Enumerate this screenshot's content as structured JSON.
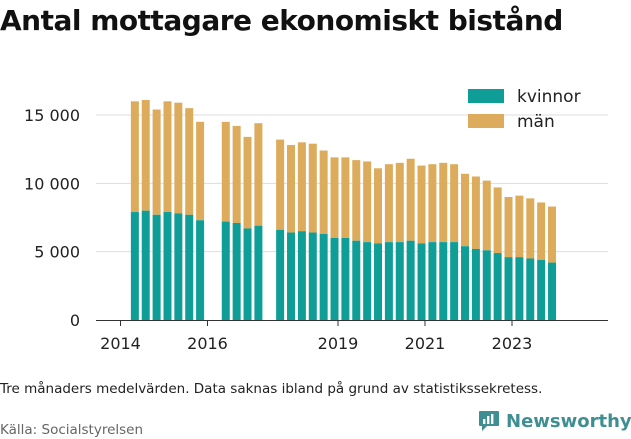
{
  "title": "Antal mottagare ekonomiskt bistånd",
  "caption": "Tre månaders medelvärden. Data saknas ibland på grund av statistikssekretess.",
  "source": "Källa: Socialstyrelsen",
  "brand": "Newsworthy",
  "colors": {
    "kvinnor": "#0e9e97",
    "man": "#dcab5b",
    "grid": "#dddddd",
    "axis": "#333333",
    "brand": "#3f8f92"
  },
  "chart_data": {
    "type": "bar",
    "stacked": true,
    "y_ticks": [
      {
        "value": 0,
        "label": "0"
      },
      {
        "value": 5000,
        "label": "5 000"
      },
      {
        "value": 10000,
        "label": "10 000"
      },
      {
        "value": 15000,
        "label": "15 000"
      }
    ],
    "x_ticks": [
      {
        "value": 2014.0,
        "label": "2014"
      },
      {
        "value": 2016.0,
        "label": "2016"
      },
      {
        "value": 2019.0,
        "label": "2019"
      },
      {
        "value": 2021.0,
        "label": "2021"
      },
      {
        "value": 2023.0,
        "label": "2023"
      }
    ],
    "xlim": [
      2013.5,
      2024.6
    ],
    "ylim": [
      0,
      17000
    ],
    "grid": true,
    "legend_position": "top-right",
    "series": [
      {
        "name": "kvinnor",
        "color": "#0e9e97"
      },
      {
        "name": "män",
        "color": "#dcab5b"
      }
    ],
    "bars": [
      {
        "x": 2014.33,
        "kvinnor": 7900,
        "män": 8100
      },
      {
        "x": 2014.58,
        "kvinnor": 8000,
        "män": 8100
      },
      {
        "x": 2014.83,
        "kvinnor": 7700,
        "män": 7700
      },
      {
        "x": 2015.08,
        "kvinnor": 7900,
        "män": 8100
      },
      {
        "x": 2015.33,
        "kvinnor": 7800,
        "män": 8100
      },
      {
        "x": 2015.58,
        "kvinnor": 7700,
        "män": 7800
      },
      {
        "x": 2015.83,
        "kvinnor": 7300,
        "män": 7200
      },
      {
        "x": 2016.42,
        "kvinnor": 7200,
        "män": 7300
      },
      {
        "x": 2016.67,
        "kvinnor": 7100,
        "män": 7100
      },
      {
        "x": 2016.92,
        "kvinnor": 6700,
        "män": 6700
      },
      {
        "x": 2017.17,
        "kvinnor": 6900,
        "män": 7500
      },
      {
        "x": 2017.67,
        "kvinnor": 6600,
        "män": 6600
      },
      {
        "x": 2017.92,
        "kvinnor": 6400,
        "män": 6400
      },
      {
        "x": 2018.17,
        "kvinnor": 6500,
        "män": 6500
      },
      {
        "x": 2018.42,
        "kvinnor": 6400,
        "män": 6500
      },
      {
        "x": 2018.67,
        "kvinnor": 6300,
        "män": 6100
      },
      {
        "x": 2018.92,
        "kvinnor": 6000,
        "män": 5900
      },
      {
        "x": 2019.17,
        "kvinnor": 6000,
        "män": 5900
      },
      {
        "x": 2019.42,
        "kvinnor": 5800,
        "män": 5900
      },
      {
        "x": 2019.67,
        "kvinnor": 5700,
        "män": 5900
      },
      {
        "x": 2019.92,
        "kvinnor": 5600,
        "män": 5500
      },
      {
        "x": 2020.17,
        "kvinnor": 5700,
        "män": 5700
      },
      {
        "x": 2020.42,
        "kvinnor": 5700,
        "män": 5800
      },
      {
        "x": 2020.67,
        "kvinnor": 5800,
        "män": 6000
      },
      {
        "x": 2020.92,
        "kvinnor": 5600,
        "män": 5700
      },
      {
        "x": 2021.17,
        "kvinnor": 5700,
        "män": 5700
      },
      {
        "x": 2021.42,
        "kvinnor": 5700,
        "män": 5800
      },
      {
        "x": 2021.67,
        "kvinnor": 5700,
        "män": 5700
      },
      {
        "x": 2021.92,
        "kvinnor": 5400,
        "män": 5300
      },
      {
        "x": 2022.17,
        "kvinnor": 5200,
        "män": 5300
      },
      {
        "x": 2022.42,
        "kvinnor": 5100,
        "män": 5100
      },
      {
        "x": 2022.67,
        "kvinnor": 4900,
        "män": 4800
      },
      {
        "x": 2022.92,
        "kvinnor": 4600,
        "män": 4400
      },
      {
        "x": 2023.17,
        "kvinnor": 4600,
        "män": 4500
      },
      {
        "x": 2023.42,
        "kvinnor": 4500,
        "män": 4400
      },
      {
        "x": 2023.67,
        "kvinnor": 4400,
        "män": 4200
      },
      {
        "x": 2023.92,
        "kvinnor": 4200,
        "män": 4100
      }
    ]
  }
}
